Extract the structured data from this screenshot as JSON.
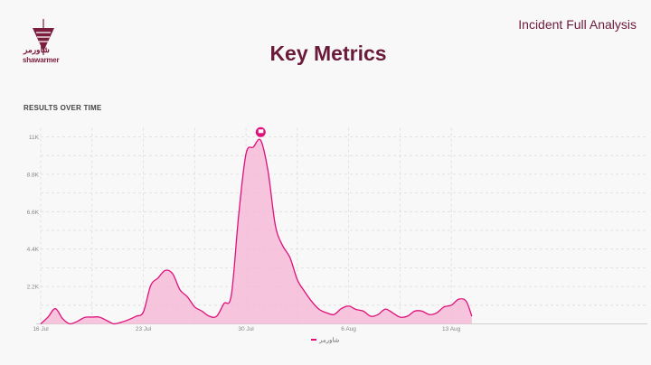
{
  "header": {
    "report_title": "Incident Full Analysis",
    "page_title": "Key Metrics"
  },
  "brand": {
    "name_en": "shawarmer",
    "name_ar": "شاورمر",
    "color": "#6b1a3a"
  },
  "section_title": "RESULTS OVER TIME",
  "chart_data": {
    "type": "area",
    "title": "RESULTS OVER TIME",
    "xlabel": "",
    "ylabel": "",
    "x_unit": "days since 16 Jul",
    "x": [
      0,
      0.5,
      1,
      1.5,
      2,
      2.5,
      3,
      3.5,
      4,
      4.5,
      5,
      5.5,
      6,
      6.5,
      7,
      7.5,
      8,
      8.5,
      9,
      9.5,
      10,
      10.5,
      11,
      11.5,
      12,
      12.5,
      13,
      13.5,
      14,
      14.5,
      15,
      15.5,
      16,
      16.5,
      17,
      17.5,
      18,
      18.5,
      19,
      19.5,
      20,
      20.5,
      21,
      21.5,
      22,
      22.5,
      23,
      23.5,
      24,
      24.5,
      25,
      25.5,
      26,
      26.5,
      27,
      27.5,
      28,
      28.5,
      29,
      29.4
    ],
    "series": [
      {
        "name": "شاورمر",
        "color": "#e0107a",
        "values": [
          0,
          400,
          900,
          300,
          0,
          150,
          380,
          400,
          400,
          200,
          0,
          100,
          250,
          450,
          700,
          2250,
          2700,
          3150,
          2950,
          2000,
          1600,
          1000,
          750,
          450,
          450,
          1200,
          1700,
          6400,
          10000,
          10400,
          10800,
          9000,
          5800,
          4600,
          3900,
          2600,
          1900,
          1300,
          850,
          650,
          550,
          900,
          1050,
          850,
          750,
          450,
          550,
          870,
          650,
          400,
          450,
          750,
          750,
          550,
          650,
          1000,
          1100,
          1450,
          1350,
          450
        ]
      }
    ],
    "x_ticks": [
      {
        "at": 0,
        "label": "16 Jul"
      },
      {
        "at": 7,
        "label": "23 Jul"
      },
      {
        "at": 14,
        "label": "30 Jul"
      },
      {
        "at": 21,
        "label": "6 Aug"
      },
      {
        "at": 28,
        "label": "13 Aug"
      }
    ],
    "y_ticks": [
      {
        "at": 2200,
        "label": "2.2K"
      },
      {
        "at": 4400,
        "label": "4.4K"
      },
      {
        "at": 6600,
        "label": "6.6K"
      },
      {
        "at": 8800,
        "label": "8.8K"
      },
      {
        "at": 11000,
        "label": "11K"
      }
    ],
    "ylim": [
      0,
      11000
    ],
    "xlim": [
      0,
      29.4
    ],
    "grid": true,
    "legend": "bottom-center",
    "annotations": [
      {
        "type": "flag-marker",
        "x": 15,
        "y": 10800
      }
    ]
  }
}
